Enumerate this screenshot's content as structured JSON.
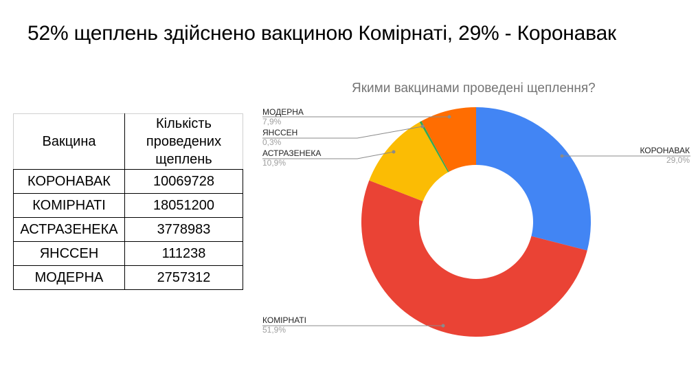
{
  "slide": {
    "title": "52% щеплень здійснено вакциною Комірнаті, 29% - Коронавак"
  },
  "table": {
    "headers": [
      "Вакцина",
      "Кількість проведених щеплень"
    ],
    "header_lines": [
      "Кількість",
      "проведених",
      "щеплень"
    ],
    "rows": [
      {
        "vaccine": "КОРОНАВАК",
        "count": "10069728"
      },
      {
        "vaccine": "КОМІРНАТІ",
        "count": "18051200"
      },
      {
        "vaccine": "АСТРАЗЕНЕКА",
        "count": "3778983"
      },
      {
        "vaccine": "ЯНССЕН",
        "count": "111238"
      },
      {
        "vaccine": "МОДЕРНА",
        "count": "2757312"
      }
    ]
  },
  "chart": {
    "title": "Якими вакцинами проведені щеплення?",
    "labels": [
      {
        "name": "КОРОНАВАК",
        "pct": "29,0%"
      },
      {
        "name": "КОМІРНАТІ",
        "pct": "51,9%"
      },
      {
        "name": "АСТРАЗЕНЕКА",
        "pct": "10,9%"
      },
      {
        "name": "ЯНССЕН",
        "pct": "0,3%"
      },
      {
        "name": "МОДЕРНА",
        "pct": "7,9%"
      }
    ]
  },
  "chart_data": {
    "type": "pie",
    "subtype": "donut",
    "title": "Якими вакцинами проведені щеплення?",
    "categories": [
      "КОРОНАВАК",
      "КОМІРНАТІ",
      "АСТРАЗЕНЕКА",
      "ЯНССЕН",
      "МОДЕРНА"
    ],
    "values": [
      29.0,
      51.9,
      10.9,
      0.3,
      7.9
    ],
    "raw_counts": [
      10069728,
      18051200,
      3778983,
      111238,
      2757312
    ],
    "colors": [
      "#4285f4",
      "#ea4335",
      "#fbbc04",
      "#34a853",
      "#ff6d01"
    ],
    "unit": "%",
    "legend": "labels-with-leader-lines"
  }
}
